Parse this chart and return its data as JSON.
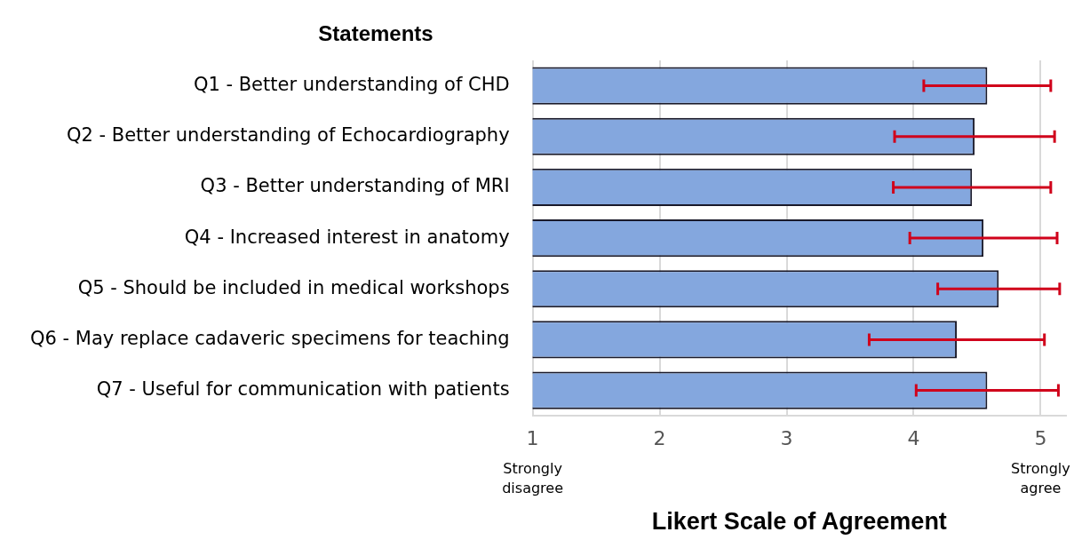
{
  "chart_data": {
    "type": "bar",
    "orientation": "horizontal",
    "ylabel": "Statements",
    "xlabel": "Likert Scale of Agreement",
    "categories": [
      "Q1 - Better understanding of CHD",
      "Q2 - Better understanding of Echocardiography",
      "Q3 - Better understanding of MRI",
      "Q4 - Increased interest in anatomy",
      "Q5 - Should be included in medical workshops",
      "Q6 - May replace cadaveric specimens for teaching",
      "Q7 - Useful for communication with patients"
    ],
    "values": [
      4.58,
      4.48,
      4.46,
      4.55,
      4.67,
      4.34,
      4.58
    ],
    "errors": [
      0.5,
      0.63,
      0.62,
      0.58,
      0.48,
      0.69,
      0.56
    ],
    "color": "#84a7de",
    "xlim": [
      1,
      5.2
    ],
    "xticks": [
      1,
      2,
      3,
      4,
      5
    ],
    "grid": "x",
    "annotations": [
      "Strongly disagree",
      "Strongly agree"
    ]
  }
}
